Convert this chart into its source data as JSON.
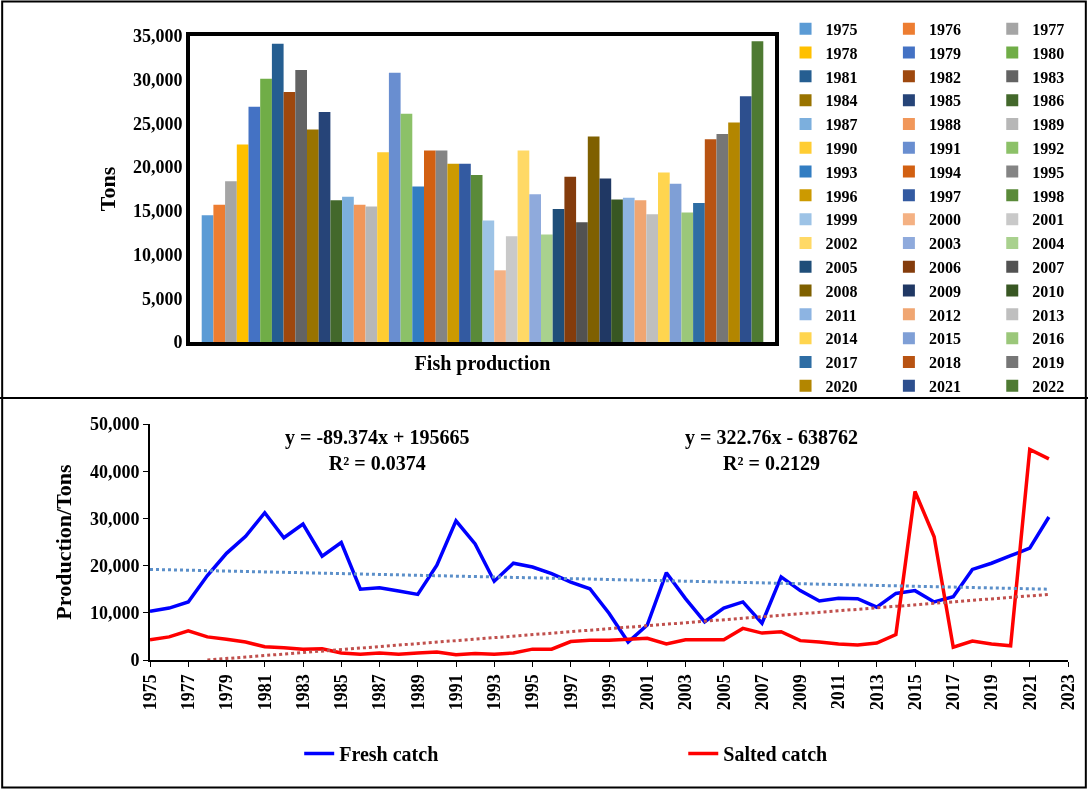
{
  "chart_data": [
    {
      "type": "bar",
      "ylabel": "Tons",
      "categories": [
        "Fish production"
      ],
      "ylim": [
        0,
        35000
      ],
      "yticks": [
        {
          "value": 0,
          "label": "0"
        },
        {
          "value": 5000,
          "label": "5,000"
        },
        {
          "value": 10000,
          "label": "10,000"
        },
        {
          "value": 15000,
          "label": "15,000"
        },
        {
          "value": 20000,
          "label": "20,000"
        },
        {
          "value": 25000,
          "label": "25,000"
        },
        {
          "value": 30000,
          "label": "30,000"
        },
        {
          "value": 35000,
          "label": "35,000"
        }
      ],
      "legend": "right",
      "series": [
        {
          "name": "1975",
          "color": "#5b9bd5",
          "values": [
            14500
          ]
        },
        {
          "name": "1976",
          "color": "#ed7d31",
          "values": [
            15700
          ]
        },
        {
          "name": "1977",
          "color": "#a5a5a5",
          "values": [
            18400
          ]
        },
        {
          "name": "1978",
          "color": "#ffc000",
          "values": [
            22600
          ]
        },
        {
          "name": "1979",
          "color": "#4472c4",
          "values": [
            26900
          ]
        },
        {
          "name": "1980",
          "color": "#70ad47",
          "values": [
            30100
          ]
        },
        {
          "name": "1981",
          "color": "#255e91",
          "values": [
            34100
          ]
        },
        {
          "name": "1982",
          "color": "#9e480e",
          "values": [
            28600
          ]
        },
        {
          "name": "1983",
          "color": "#636363",
          "values": [
            31100
          ]
        },
        {
          "name": "1984",
          "color": "#997300",
          "values": [
            24300
          ]
        },
        {
          "name": "1985",
          "color": "#264478",
          "values": [
            26300
          ]
        },
        {
          "name": "1986",
          "color": "#43682b",
          "values": [
            16200
          ]
        },
        {
          "name": "1987",
          "color": "#7cafdd",
          "values": [
            16600
          ]
        },
        {
          "name": "1988",
          "color": "#f1975a",
          "values": [
            15700
          ]
        },
        {
          "name": "1989",
          "color": "#b7b7b7",
          "values": [
            15500
          ]
        },
        {
          "name": "1990",
          "color": "#ffcd33",
          "values": [
            21700
          ]
        },
        {
          "name": "1991",
          "color": "#698ed0",
          "values": [
            30800
          ]
        },
        {
          "name": "1992",
          "color": "#8cc168",
          "values": [
            26100
          ]
        },
        {
          "name": "1993",
          "color": "#327dc2",
          "values": [
            17800
          ]
        },
        {
          "name": "1994",
          "color": "#d26012",
          "values": [
            21900
          ]
        },
        {
          "name": "1995",
          "color": "#848484",
          "values": [
            21900
          ]
        },
        {
          "name": "1996",
          "color": "#cc9a00",
          "values": [
            20400
          ]
        },
        {
          "name": "1997",
          "color": "#335aa1",
          "values": [
            20400
          ]
        },
        {
          "name": "1998",
          "color": "#5a8a39",
          "values": [
            19100
          ]
        },
        {
          "name": "1999",
          "color": "#9dc3e6",
          "values": [
            13900
          ]
        },
        {
          "name": "2000",
          "color": "#f4b183",
          "values": [
            8200
          ]
        },
        {
          "name": "2001",
          "color": "#c9c9c9",
          "values": [
            12100
          ]
        },
        {
          "name": "2002",
          "color": "#ffd966",
          "values": [
            21900
          ]
        },
        {
          "name": "2003",
          "color": "#8faadc",
          "values": [
            16900
          ]
        },
        {
          "name": "2004",
          "color": "#a9d18e",
          "values": [
            12300
          ]
        },
        {
          "name": "2005",
          "color": "#1f4e79",
          "values": [
            15200
          ]
        },
        {
          "name": "2006",
          "color": "#843c0c",
          "values": [
            18900
          ]
        },
        {
          "name": "2007",
          "color": "#525252",
          "values": [
            13700
          ]
        },
        {
          "name": "2008",
          "color": "#7f6000",
          "values": [
            23500
          ]
        },
        {
          "name": "2009",
          "color": "#203864",
          "values": [
            18700
          ]
        },
        {
          "name": "2010",
          "color": "#385723",
          "values": [
            16300
          ]
        },
        {
          "name": "2011",
          "color": "#8db4e2",
          "values": [
            16500
          ]
        },
        {
          "name": "2012",
          "color": "#f0a672",
          "values": [
            16200
          ]
        },
        {
          "name": "2013",
          "color": "#bfbfbf",
          "values": [
            14600
          ]
        },
        {
          "name": "2014",
          "color": "#ffd54f",
          "values": [
            19400
          ]
        },
        {
          "name": "2015",
          "color": "#7f9fd6",
          "values": [
            18100
          ]
        },
        {
          "name": "2016",
          "color": "#9bc77a",
          "values": [
            14800
          ]
        },
        {
          "name": "2017",
          "color": "#2e6da4",
          "values": [
            15900
          ]
        },
        {
          "name": "2018",
          "color": "#b85312",
          "values": [
            23200
          ]
        },
        {
          "name": "2019",
          "color": "#767676",
          "values": [
            23800
          ]
        },
        {
          "name": "2020",
          "color": "#b38600",
          "values": [
            25100
          ]
        },
        {
          "name": "2021",
          "color": "#2d4f8e",
          "values": [
            28100
          ]
        },
        {
          "name": "2022",
          "color": "#4e7a32",
          "values": [
            34400
          ]
        }
      ]
    },
    {
      "type": "line",
      "ylabel": "Production/Tons",
      "xlim": [
        1975,
        2023
      ],
      "xticks": [
        1975,
        1977,
        1979,
        1981,
        1983,
        1985,
        1987,
        1989,
        1991,
        1993,
        1995,
        1997,
        1999,
        2001,
        2003,
        2005,
        2007,
        2009,
        2011,
        2013,
        2015,
        2017,
        2019,
        2021,
        2023
      ],
      "ylim": [
        0,
        50000
      ],
      "yticks": [
        {
          "value": 0,
          "label": "0"
        },
        {
          "value": 10000,
          "label": "10,000"
        },
        {
          "value": 20000,
          "label": "20,000"
        },
        {
          "value": 30000,
          "label": "30,000"
        },
        {
          "value": 40000,
          "label": "40,000"
        },
        {
          "value": 50000,
          "label": "50,000"
        }
      ],
      "legend": "bottom",
      "marker": "none",
      "line_style": "solid",
      "x": [
        1975,
        1976,
        1977,
        1978,
        1979,
        1980,
        1981,
        1982,
        1983,
        1984,
        1985,
        1986,
        1987,
        1988,
        1989,
        1990,
        1991,
        1992,
        1993,
        1994,
        1995,
        1996,
        1997,
        1998,
        1999,
        2000,
        2001,
        2002,
        2003,
        2004,
        2005,
        2006,
        2007,
        2008,
        2009,
        2010,
        2011,
        2012,
        2013,
        2014,
        2015,
        2016,
        2017,
        2018,
        2019,
        2020,
        2021,
        2022
      ],
      "annotations": [
        "y = -89.374x + 195665\nR² = 0.0374",
        "y = 322.76x - 638762\nR² = 0.2129"
      ],
      "series": [
        {
          "name": "Fresh catch",
          "color": "#0000ff",
          "values": [
            10300,
            11000,
            12300,
            17900,
            22600,
            26200,
            31200,
            25900,
            28800,
            22000,
            24900,
            15000,
            15300,
            14600,
            13900,
            20100,
            29500,
            24600,
            16700,
            20500,
            19700,
            18300,
            16500,
            15100,
            9900,
            3800,
            7400,
            18500,
            13000,
            8100,
            11000,
            12300,
            7800,
            17600,
            14700,
            12500,
            13100,
            13000,
            11200,
            14100,
            14700,
            12300,
            13400,
            19200,
            20500,
            22100,
            23700,
            30300
          ]
        },
        {
          "name": "Salted catch",
          "color": "#ff0000",
          "values": [
            4300,
            4900,
            6200,
            4900,
            4400,
            3800,
            2800,
            2600,
            2300,
            2400,
            1500,
            1200,
            1500,
            1200,
            1500,
            1700,
            1100,
            1400,
            1200,
            1500,
            2300,
            2300,
            3900,
            4200,
            4200,
            4400,
            4600,
            3400,
            4300,
            4300,
            4300,
            6700,
            5700,
            6000,
            4100,
            3800,
            3400,
            3200,
            3600,
            5400,
            35700,
            26100,
            2700,
            4000,
            3400,
            3000,
            44600,
            42600
          ]
        },
        {
          "color": "#5b8fc9",
          "line_style": "dotted",
          "x": [
            1975,
            2022
          ],
          "values": [
            19200,
            15000
          ]
        },
        {
          "color": "#c0504d",
          "line_style": "dotted",
          "x": [
            1978,
            2022
          ],
          "values": [
            0,
            13900
          ]
        }
      ]
    }
  ]
}
